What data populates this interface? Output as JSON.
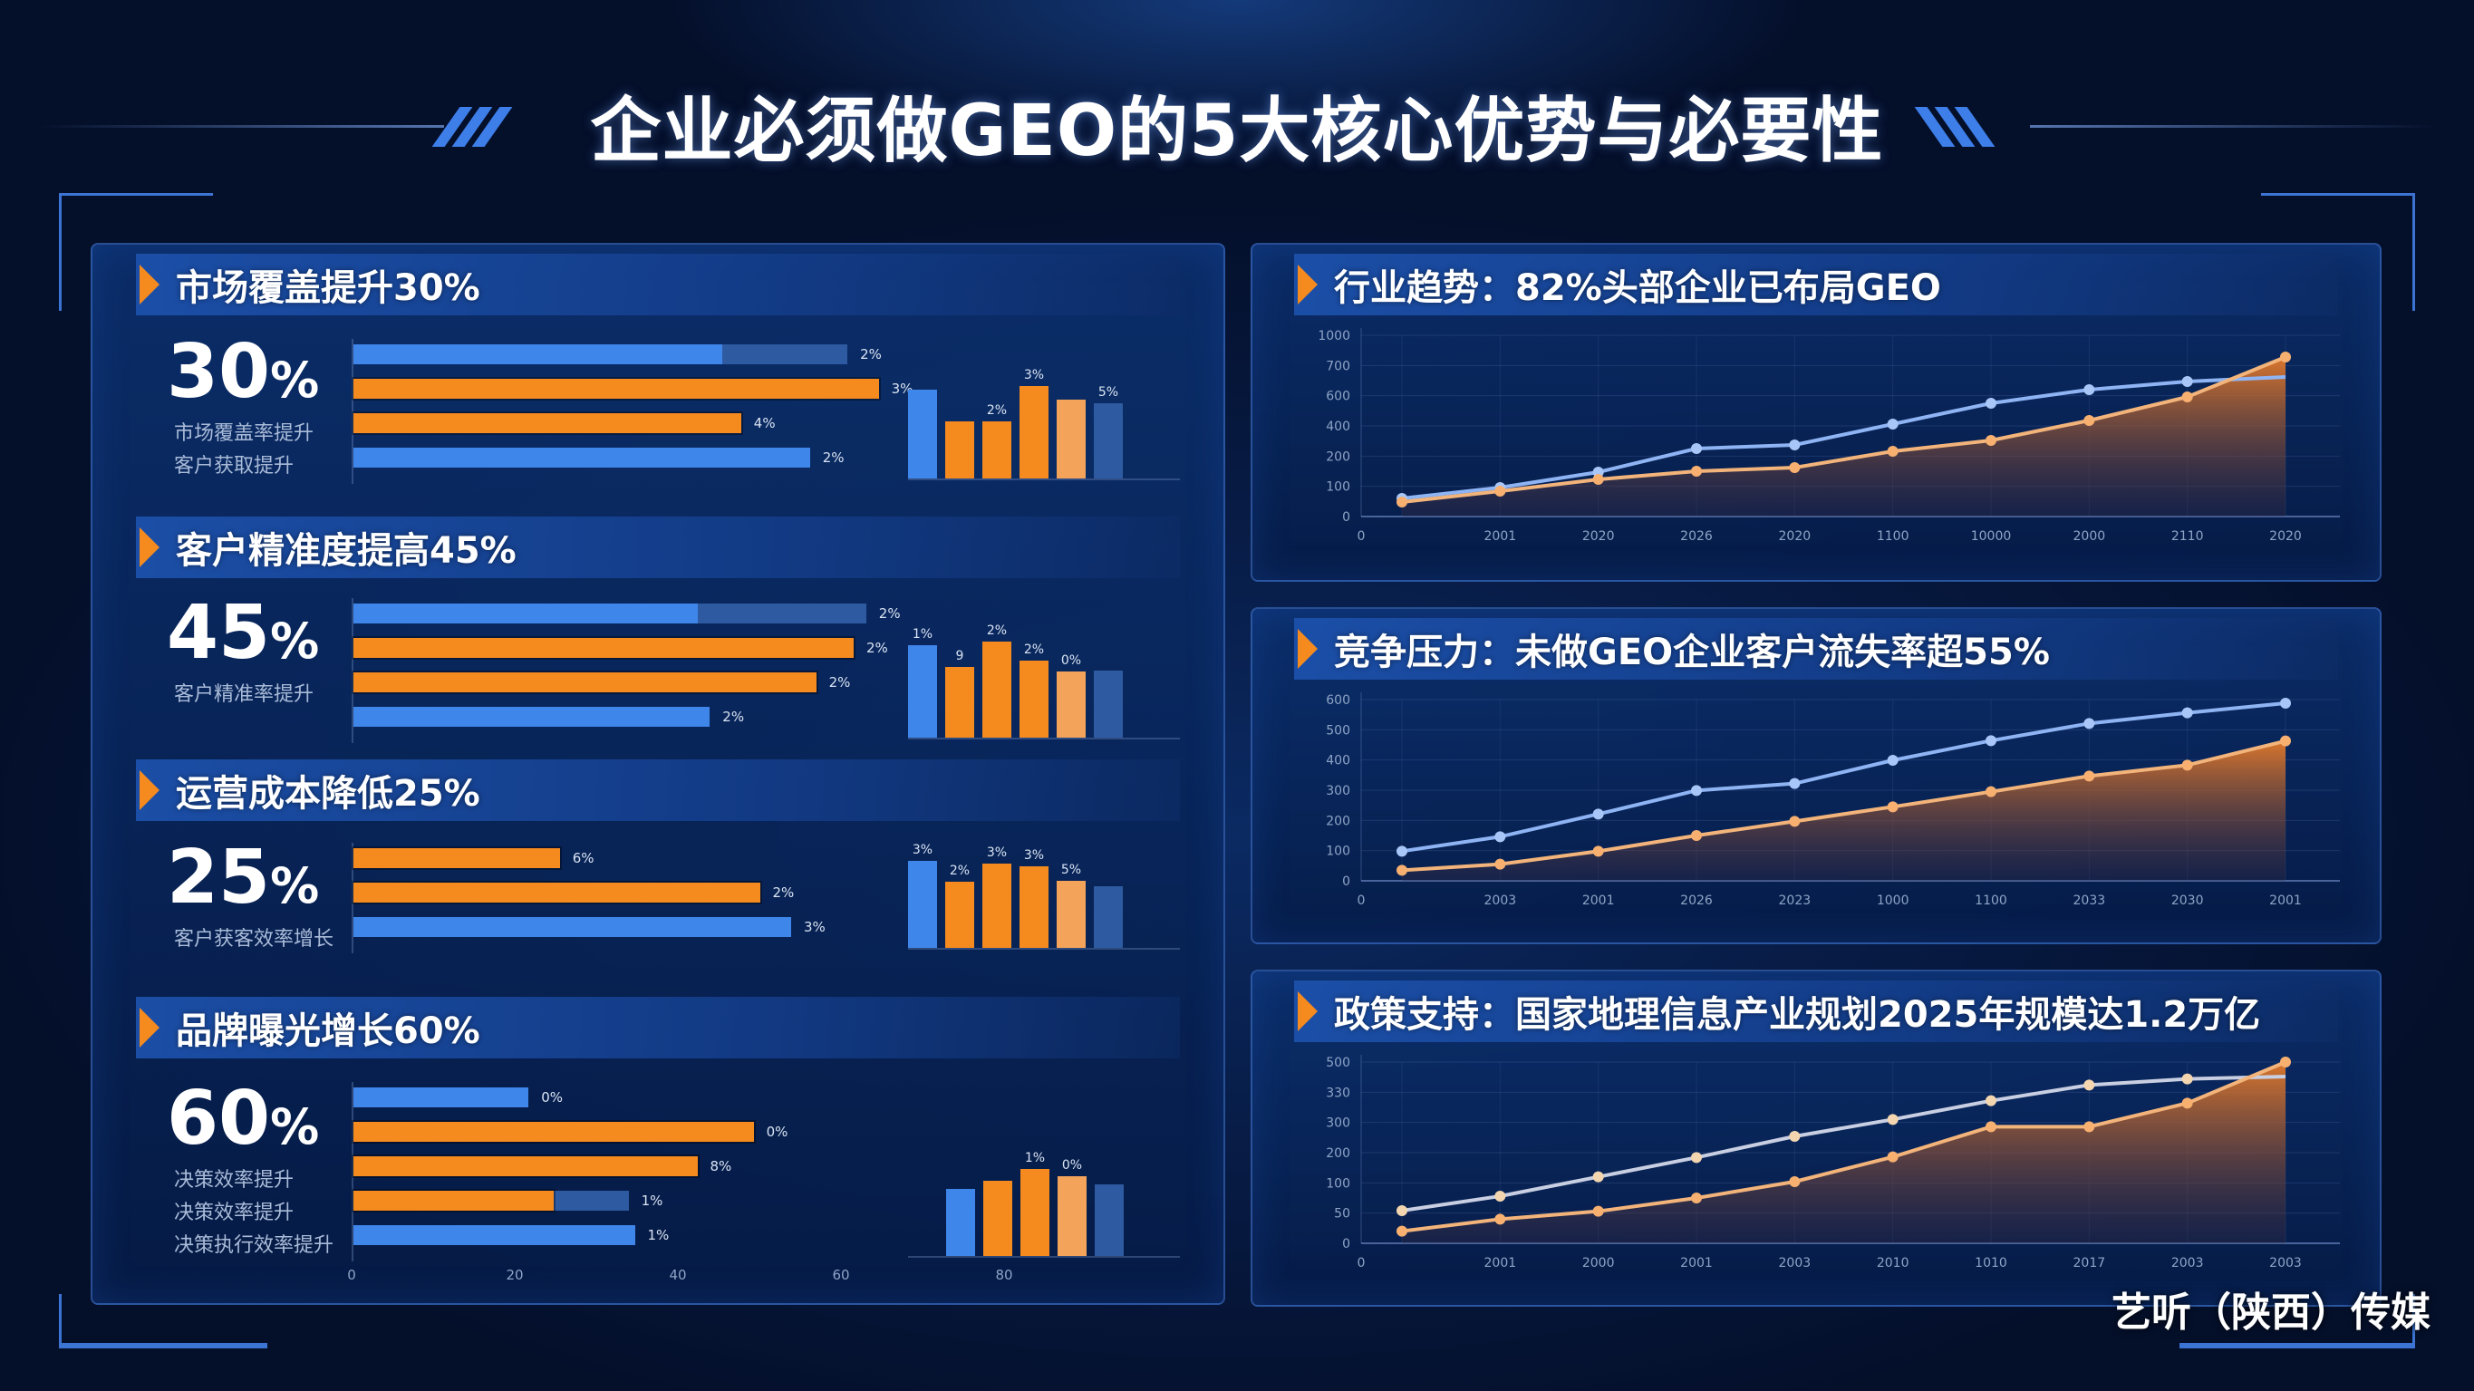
{
  "header": {
    "title": "企业必须做GEO的5大核心优势与必要性"
  },
  "left_panel": {
    "sections": [
      {
        "heading": "市场覆盖提升30%",
        "big_value": "30",
        "big_unit": "%",
        "sub_labels": [
          "市场覆盖率提升",
          "客户获取提升"
        ],
        "hbars": [
          {
            "color": "blue",
            "fill": 0.59,
            "track": 0.79,
            "label": "2%"
          },
          {
            "color": "orange",
            "fill": 0.84,
            "track": 0,
            "label": "3%"
          },
          {
            "color": "orange",
            "fill": 0.62,
            "track": 0,
            "label": "4%"
          },
          {
            "color": "blue",
            "fill": 0.73,
            "track": 0,
            "label": "2%"
          }
        ],
        "vbars": [
          {
            "color": "#3e86ea",
            "h": 0.92,
            "label": ""
          },
          {
            "color": "#f58a1f",
            "h": 0.59,
            "label": ""
          },
          {
            "color": "#f58a1f",
            "h": 0.59,
            "label": "2%"
          },
          {
            "color": "#f58a1f",
            "h": 0.96,
            "label": "3%"
          },
          {
            "color": "#f3a45a",
            "h": 0.82,
            "label": ""
          },
          {
            "color": "#2d5aa0",
            "h": 0.78,
            "label": "5%"
          }
        ]
      },
      {
        "heading": "客户精准度提高45%",
        "big_value": "45",
        "big_unit": "%",
        "sub_labels": [
          "客户精准率提升"
        ],
        "hbars": [
          {
            "color": "blue",
            "fill": 0.55,
            "track": 0.82,
            "label": "2%"
          },
          {
            "color": "orange",
            "fill": 0.8,
            "track": 0,
            "label": "2%"
          },
          {
            "color": "orange",
            "fill": 0.74,
            "track": 0,
            "label": "2%"
          },
          {
            "color": "blue",
            "fill": 0.57,
            "track": 0,
            "label": "2%"
          }
        ],
        "vbars": [
          {
            "color": "#3e86ea",
            "h": 0.96,
            "label": "1%"
          },
          {
            "color": "#f58a1f",
            "h": 0.74,
            "label": "9"
          },
          {
            "color": "#f58a1f",
            "h": 1.0,
            "label": "2%"
          },
          {
            "color": "#f58a1f",
            "h": 0.8,
            "label": "2%"
          },
          {
            "color": "#f3a45a",
            "h": 0.69,
            "label": "0%"
          },
          {
            "color": "#2d5aa0",
            "h": 0.7,
            "label": ""
          }
        ]
      },
      {
        "heading": "运营成本降低25%",
        "big_value": "25",
        "big_unit": "%",
        "sub_labels": [
          "客户获客效率增长"
        ],
        "hbars": [
          {
            "color": "orange",
            "fill": 0.33,
            "track": 0,
            "label": "6%"
          },
          {
            "color": "orange",
            "fill": 0.65,
            "track": 0,
            "label": "2%"
          },
          {
            "color": "blue",
            "fill": 0.7,
            "track": 0,
            "label": "3%"
          }
        ],
        "vbars": [
          {
            "color": "#3e86ea",
            "h": 1.0,
            "label": "3%"
          },
          {
            "color": "#f58a1f",
            "h": 0.76,
            "label": "2%"
          },
          {
            "color": "#f58a1f",
            "h": 0.97,
            "label": "3%"
          },
          {
            "color": "#f58a1f",
            "h": 0.94,
            "label": "3%"
          },
          {
            "color": "#f3a45a",
            "h": 0.77,
            "label": "5%"
          },
          {
            "color": "#2d5aa0",
            "h": 0.71,
            "label": ""
          }
        ]
      },
      {
        "heading": "品牌曝光增长60%",
        "big_value": "60",
        "big_unit": "%",
        "sub_labels": [
          "决策效率提升",
          "决策效率提升",
          "决策执行效率提升"
        ],
        "hbars": [
          {
            "color": "blue",
            "fill": 0.28,
            "track": 0,
            "label": "0%"
          },
          {
            "color": "orange",
            "fill": 0.64,
            "track": 0,
            "label": "0%"
          },
          {
            "color": "orange",
            "fill": 0.55,
            "track": 0,
            "label": "8%"
          },
          {
            "color": "orange",
            "fill": 0.32,
            "track": 0.44,
            "label": "1%"
          },
          {
            "color": "blue",
            "fill": 0.45,
            "track": 0,
            "label": "1%"
          }
        ],
        "vbars": [
          {
            "color": "#3e86ea",
            "h": 0.77,
            "label": ""
          },
          {
            "color": "#f58a1f",
            "h": 0.86,
            "label": ""
          },
          {
            "color": "#f58a1f",
            "h": 1.0,
            "label": "1%"
          },
          {
            "color": "#f3a45a",
            "h": 0.92,
            "label": "0%"
          },
          {
            "color": "#2d5aa0",
            "h": 0.82,
            "label": ""
          }
        ],
        "xaxis_ticks": [
          "0",
          "20",
          "40",
          "60",
          "80"
        ]
      }
    ]
  },
  "right_panels": [
    {
      "heading": "行业趋势：82%头部企业已布局GEO"
    },
    {
      "heading": "竞争压力：未做GEO企业客户流失率超55%"
    },
    {
      "heading": "政策支持：国家地理信息产业规划2025年规模达1.2万亿"
    }
  ],
  "watermark": "艺听（陕西）传媒",
  "colors": {
    "orange": "#f58a1f",
    "blue": "#3e86ea",
    "line_blue": "#8fb4f4",
    "line_orange": "#f2a766",
    "background": "#071a42"
  },
  "chart_data": [
    {
      "type": "bar",
      "title": "市场覆盖提升30%",
      "headline_value": "30%",
      "orientation": "horizontal+vertical",
      "series": [
        {
          "name": "horizontal",
          "values": [
            47,
            67,
            49,
            58
          ]
        },
        {
          "name": "vertical",
          "values": [
            92,
            59,
            59,
            96,
            82,
            78
          ]
        }
      ]
    },
    {
      "type": "bar",
      "title": "客户精准度提高45%",
      "headline_value": "45%",
      "series": [
        {
          "name": "horizontal",
          "values": [
            44,
            64,
            59,
            46
          ]
        },
        {
          "name": "vertical",
          "values": [
            96,
            74,
            100,
            80,
            69,
            70
          ]
        }
      ]
    },
    {
      "type": "bar",
      "title": "运营成本降低25%",
      "headline_value": "25%",
      "series": [
        {
          "name": "horizontal",
          "values": [
            26,
            52,
            56
          ]
        },
        {
          "name": "vertical",
          "values": [
            100,
            76,
            97,
            94,
            77,
            71
          ]
        }
      ]
    },
    {
      "type": "bar",
      "title": "品牌曝光增长60%",
      "headline_value": "60%",
      "xlim": [
        0,
        80
      ],
      "x_ticks": [
        "0",
        "20",
        "40",
        "60",
        "80"
      ],
      "series": [
        {
          "name": "horizontal",
          "values": [
            22,
            51,
            44,
            26,
            36
          ]
        },
        {
          "name": "vertical",
          "values": [
            77,
            86,
            100,
            92,
            82
          ]
        }
      ]
    },
    {
      "type": "area",
      "title": "行业趋势：82%头部企业已布局GEO",
      "y_ticks": [
        "0",
        "100",
        "200",
        "400",
        "600",
        "700",
        "1000"
      ],
      "x_ticks": [
        "0",
        "2001",
        "2020",
        "2026",
        "2020",
        "1100",
        "10000",
        "2000",
        "2110",
        "2020"
      ],
      "grid": true,
      "series": [
        {
          "name": "blue-line",
          "values": [
            100,
            160,
            245,
            375,
            395,
            510,
            625,
            700,
            745,
            770
          ]
        },
        {
          "name": "orange-area",
          "values": [
            80,
            140,
            205,
            250,
            270,
            360,
            420,
            530,
            660,
            880
          ]
        }
      ]
    },
    {
      "type": "area",
      "title": "竞争压力：未做GEO企业客户流失率超55%",
      "y_ticks": [
        "0",
        "100",
        "200",
        "300",
        "400",
        "500",
        "600"
      ],
      "x_ticks": [
        "0",
        "2003",
        "2001",
        "2026",
        "2023",
        "1000",
        "1100",
        "2033",
        "2030",
        "2001"
      ],
      "grid": true,
      "series": [
        {
          "name": "blue-line",
          "values": [
            98,
            146,
            221,
            299,
            322,
            399,
            464,
            521,
            556,
            588
          ]
        },
        {
          "name": "orange-area",
          "values": [
            35,
            55,
            98,
            150,
            197,
            245,
            295,
            347,
            383,
            463
          ]
        }
      ]
    },
    {
      "type": "area",
      "title": "政策支持：国家地理信息产业规划2025年规模达1.2万亿",
      "y_ticks": [
        "0",
        "50",
        "100",
        "200",
        "300",
        "330",
        "500"
      ],
      "x_ticks": [
        "0",
        "2001",
        "2000",
        "2001",
        "2003",
        "2010",
        "1010",
        "2017",
        "2003",
        "2003"
      ],
      "grid": true,
      "series": [
        {
          "name": "blue-line",
          "values": [
            54,
            78,
            110,
            142,
            177,
            205,
            236,
            262,
            272,
            276
          ]
        },
        {
          "name": "orange-area",
          "values": [
            20,
            40,
            53,
            75,
            102,
            143,
            193,
            193,
            232,
            300
          ]
        }
      ]
    }
  ]
}
